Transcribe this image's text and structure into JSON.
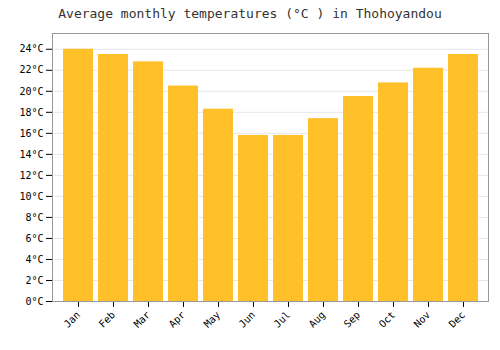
{
  "chart_data": {
    "type": "bar",
    "title": "Average monthly temperatures (°C ) in Thohoyandou",
    "categories": [
      "Jan",
      "Feb",
      "Mar",
      "Apr",
      "May",
      "Jun",
      "Jul",
      "Aug",
      "Sep",
      "Oct",
      "Nov",
      "Dec"
    ],
    "values": [
      24.0,
      23.5,
      22.8,
      20.5,
      18.3,
      15.8,
      15.8,
      17.4,
      19.5,
      20.8,
      22.2,
      23.5
    ],
    "color": "#FFC02A",
    "ylim": [
      0,
      25.5
    ],
    "yticks": [
      {
        "value": 0,
        "label": "0°C"
      },
      {
        "value": 2,
        "label": "2°C"
      },
      {
        "value": 4,
        "label": "4°C"
      },
      {
        "value": 6,
        "label": "6°C"
      },
      {
        "value": 8,
        "label": "8°C"
      },
      {
        "value": 10,
        "label": "10°C"
      },
      {
        "value": 12,
        "label": "12°C"
      },
      {
        "value": 14,
        "label": "14°C"
      },
      {
        "value": 16,
        "label": "16°C"
      },
      {
        "value": 18,
        "label": "18°C"
      },
      {
        "value": 20,
        "label": "20°C"
      },
      {
        "value": 22,
        "label": "22°C"
      },
      {
        "value": 24,
        "label": "24°C"
      }
    ],
    "grid": true
  }
}
